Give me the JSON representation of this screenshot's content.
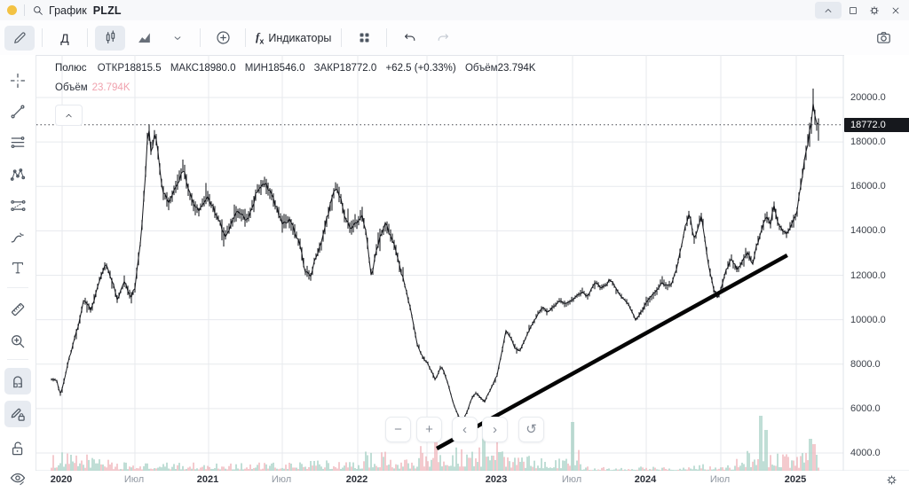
{
  "window": {
    "title_app": "График",
    "title_symbol": "PLZL"
  },
  "toolbar": {
    "timeframe": "Д",
    "indicators_label": "Индикаторы",
    "fx": "f",
    "fx_sub": "x"
  },
  "legend": {
    "instrument": "Полюс",
    "open_label": "ОТКР",
    "open": "18815.5",
    "high_label": "МАКС",
    "high": "18980.0",
    "low_label": "МИН",
    "low": "18546.0",
    "close_label": "ЗАКР",
    "close": "18772.0",
    "change": "+62.5 (+0.33%)",
    "volume_label": "Объём",
    "volume_inline": "23.794K",
    "volume_row_label": "Объём",
    "volume_row_value": "23.794K"
  },
  "nav": {
    "zoom_out": "−",
    "zoom_in": "+",
    "back": "‹",
    "forward": "›",
    "reset": "↺"
  },
  "colors": {
    "candle": "#15171c",
    "trendline": "#050505",
    "grid": "#e7eaee",
    "axis_border": "#dfe3e8",
    "vol_up": "#a6d0c4",
    "vol_down": "#efb4b9",
    "dotted_price_line": "#42454c",
    "badge_bg": "#16181d",
    "legend_volume_value": "#f0a2ae",
    "accent_dot": "#f3c243"
  },
  "chart_data": {
    "type": "candlestick",
    "symbol": "PLZL",
    "instrument": "Полюс",
    "timeframe": "Д",
    "title": "График PLZL",
    "ohlc": {
      "open": 18815.5,
      "high": 18980.0,
      "low": 18546.0,
      "close": 18772.0,
      "change": 62.5,
      "change_pct": 0.33
    },
    "volume_display": "23.794K",
    "last_price": 18772.0,
    "last_price_label": "18772.0",
    "y_axis": {
      "ticks": [
        20000.0,
        18000.0,
        16000.0,
        14000.0,
        12000.0,
        10000.0,
        8000.0,
        6000.0,
        4000.0
      ],
      "range": [
        4000,
        20000
      ],
      "grid": true
    },
    "x_axis": {
      "ticks": [
        {
          "t": 2020.0,
          "label": "2020",
          "major": true
        },
        {
          "t": 2020.5,
          "label": "Июл",
          "major": false
        },
        {
          "t": 2021.0,
          "label": "2021",
          "major": true
        },
        {
          "t": 2021.5,
          "label": "Июл",
          "major": false
        },
        {
          "t": 2022.0,
          "label": "2022",
          "major": true
        },
        {
          "t": 2022.5,
          "label": "",
          "major": false
        },
        {
          "t": 2023.0,
          "label": "2023",
          "major": true
        },
        {
          "t": 2023.5,
          "label": "Июл",
          "major": false
        },
        {
          "t": 2024.0,
          "label": "2024",
          "major": true
        },
        {
          "t": 2024.5,
          "label": "Июл",
          "major": false
        },
        {
          "t": 2025.0,
          "label": "2025",
          "major": true
        }
      ]
    },
    "series_anchors": [
      [
        2019.96,
        7300
      ],
      [
        2019.99,
        6600
      ],
      [
        2020.05,
        8300
      ],
      [
        2020.11,
        9700
      ],
      [
        2020.15,
        10900
      ],
      [
        2020.2,
        10400
      ],
      [
        2020.26,
        11900
      ],
      [
        2020.3,
        12500
      ],
      [
        2020.35,
        11600
      ],
      [
        2020.38,
        10900
      ],
      [
        2020.43,
        11700
      ],
      [
        2020.47,
        11000
      ],
      [
        2020.5,
        11400
      ],
      [
        2020.54,
        13600
      ],
      [
        2020.57,
        16300
      ],
      [
        2020.59,
        18900
      ],
      [
        2020.61,
        17500
      ],
      [
        2020.64,
        18500
      ],
      [
        2020.66,
        17200
      ],
      [
        2020.69,
        15800
      ],
      [
        2020.73,
        15200
      ],
      [
        2020.77,
        15900
      ],
      [
        2020.8,
        16300
      ],
      [
        2020.83,
        16900
      ],
      [
        2020.86,
        15900
      ],
      [
        2020.9,
        15100
      ],
      [
        2020.93,
        14900
      ],
      [
        2020.97,
        15400
      ],
      [
        2021.0,
        15500
      ],
      [
        2021.04,
        14900
      ],
      [
        2021.08,
        14300
      ],
      [
        2021.11,
        13700
      ],
      [
        2021.15,
        14300
      ],
      [
        2021.19,
        14800
      ],
      [
        2021.22,
        14700
      ],
      [
        2021.26,
        14500
      ],
      [
        2021.3,
        15200
      ],
      [
        2021.33,
        15800
      ],
      [
        2021.37,
        16100
      ],
      [
        2021.4,
        16000
      ],
      [
        2021.44,
        15400
      ],
      [
        2021.48,
        14700
      ],
      [
        2021.5,
        14400
      ],
      [
        2021.55,
        14500
      ],
      [
        2021.58,
        14000
      ],
      [
        2021.62,
        13300
      ],
      [
        2021.65,
        12200
      ],
      [
        2021.69,
        12000
      ],
      [
        2021.72,
        12800
      ],
      [
        2021.76,
        13400
      ],
      [
        2021.79,
        14400
      ],
      [
        2021.83,
        15500
      ],
      [
        2021.86,
        16100
      ],
      [
        2021.89,
        15300
      ],
      [
        2021.92,
        14500
      ],
      [
        2021.96,
        14100
      ],
      [
        2022.0,
        14400
      ],
      [
        2022.03,
        14700
      ],
      [
        2022.06,
        13900
      ],
      [
        2022.1,
        11900
      ],
      [
        2022.13,
        13000
      ],
      [
        2022.17,
        13900
      ],
      [
        2022.2,
        14300
      ],
      [
        2022.24,
        13800
      ],
      [
        2022.28,
        13000
      ],
      [
        2022.31,
        12200
      ],
      [
        2022.35,
        11300
      ],
      [
        2022.39,
        10200
      ],
      [
        2022.43,
        8900
      ],
      [
        2022.47,
        8300
      ],
      [
        2022.5,
        8100
      ],
      [
        2022.53,
        7700
      ],
      [
        2022.56,
        7300
      ],
      [
        2022.6,
        7900
      ],
      [
        2022.63,
        7500
      ],
      [
        2022.66,
        6900
      ],
      [
        2022.69,
        6200
      ],
      [
        2022.72,
        5700
      ],
      [
        2022.75,
        5400
      ],
      [
        2022.79,
        5900
      ],
      [
        2022.82,
        6500
      ],
      [
        2022.85,
        6700
      ],
      [
        2022.88,
        6500
      ],
      [
        2022.91,
        6300
      ],
      [
        2022.94,
        6700
      ],
      [
        2022.97,
        7100
      ],
      [
        2023.0,
        7500
      ],
      [
        2023.03,
        8500
      ],
      [
        2023.06,
        9500
      ],
      [
        2023.09,
        9200
      ],
      [
        2023.12,
        8700
      ],
      [
        2023.15,
        8600
      ],
      [
        2023.18,
        9000
      ],
      [
        2023.21,
        9500
      ],
      [
        2023.24,
        9900
      ],
      [
        2023.3,
        10600
      ],
      [
        2023.33,
        10300
      ],
      [
        2023.36,
        10500
      ],
      [
        2023.39,
        10700
      ],
      [
        2023.42,
        10900
      ],
      [
        2023.45,
        10700
      ],
      [
        2023.48,
        10800
      ],
      [
        2023.54,
        11100
      ],
      [
        2023.57,
        11300
      ],
      [
        2023.6,
        11000
      ],
      [
        2023.63,
        11400
      ],
      [
        2023.66,
        11700
      ],
      [
        2023.69,
        11400
      ],
      [
        2023.72,
        11500
      ],
      [
        2023.75,
        11800
      ],
      [
        2023.78,
        11600
      ],
      [
        2023.81,
        11200
      ],
      [
        2023.84,
        11000
      ],
      [
        2023.87,
        10800
      ],
      [
        2023.9,
        10400
      ],
      [
        2023.93,
        10000
      ],
      [
        2023.96,
        10300
      ],
      [
        2024.0,
        10700
      ],
      [
        2024.03,
        11000
      ],
      [
        2024.07,
        11300
      ],
      [
        2024.1,
        11700
      ],
      [
        2024.14,
        11500
      ],
      [
        2024.17,
        11600
      ],
      [
        2024.2,
        12200
      ],
      [
        2024.23,
        13100
      ],
      [
        2024.26,
        14100
      ],
      [
        2024.29,
        14800
      ],
      [
        2024.32,
        13600
      ],
      [
        2024.37,
        14700
      ],
      [
        2024.41,
        12800
      ],
      [
        2024.45,
        11400
      ],
      [
        2024.48,
        11000
      ],
      [
        2024.51,
        11600
      ],
      [
        2024.54,
        12300
      ],
      [
        2024.57,
        12800
      ],
      [
        2024.61,
        12200
      ],
      [
        2024.64,
        12600
      ],
      [
        2024.68,
        13000
      ],
      [
        2024.71,
        12500
      ],
      [
        2024.74,
        13400
      ],
      [
        2024.77,
        14000
      ],
      [
        2024.8,
        14700
      ],
      [
        2024.83,
        14300
      ],
      [
        2024.85,
        15200
      ],
      [
        2024.88,
        14300
      ],
      [
        2024.91,
        14000
      ],
      [
        2024.94,
        13900
      ],
      [
        2024.97,
        14300
      ],
      [
        2025.0,
        14700
      ],
      [
        2025.02,
        15600
      ],
      [
        2025.05,
        17000
      ],
      [
        2025.07,
        17600
      ],
      [
        2025.08,
        18200
      ],
      [
        2025.1,
        18800
      ],
      [
        2025.11,
        19900
      ],
      [
        2025.12,
        19200
      ],
      [
        2025.14,
        18600
      ],
      [
        2025.15,
        18772
      ]
    ],
    "trendline": {
      "from": [
        2022.57,
        4200
      ],
      "to": [
        2024.94,
        12900
      ]
    },
    "volume_profile": [
      [
        2019.9,
        2020.35,
        2.2
      ],
      [
        2020.35,
        2021.55,
        1.0
      ],
      [
        2021.55,
        2022.05,
        1.3
      ],
      [
        2022.05,
        2022.25,
        2.4
      ],
      [
        2022.25,
        2022.45,
        1.6
      ],
      [
        2022.45,
        2023.08,
        3.0
      ],
      [
        2023.08,
        2023.45,
        1.9
      ],
      [
        2023.45,
        2023.56,
        3.2
      ],
      [
        2023.56,
        2024.25,
        0.55
      ],
      [
        2024.25,
        2024.6,
        0.8
      ],
      [
        2024.6,
        2024.92,
        2.6
      ],
      [
        2024.92,
        2025.2,
        2.2
      ]
    ],
    "volume_spikes": [
      [
        2022.56,
        34,
        "r"
      ],
      [
        2022.9,
        44,
        "g"
      ],
      [
        2023.0,
        40,
        "r"
      ],
      [
        2023.5,
        55,
        "g"
      ],
      [
        2024.77,
        62,
        "g"
      ],
      [
        2024.8,
        46,
        "g"
      ],
      [
        2025.09,
        36,
        "g"
      ],
      [
        2025.12,
        30,
        "r"
      ]
    ]
  }
}
